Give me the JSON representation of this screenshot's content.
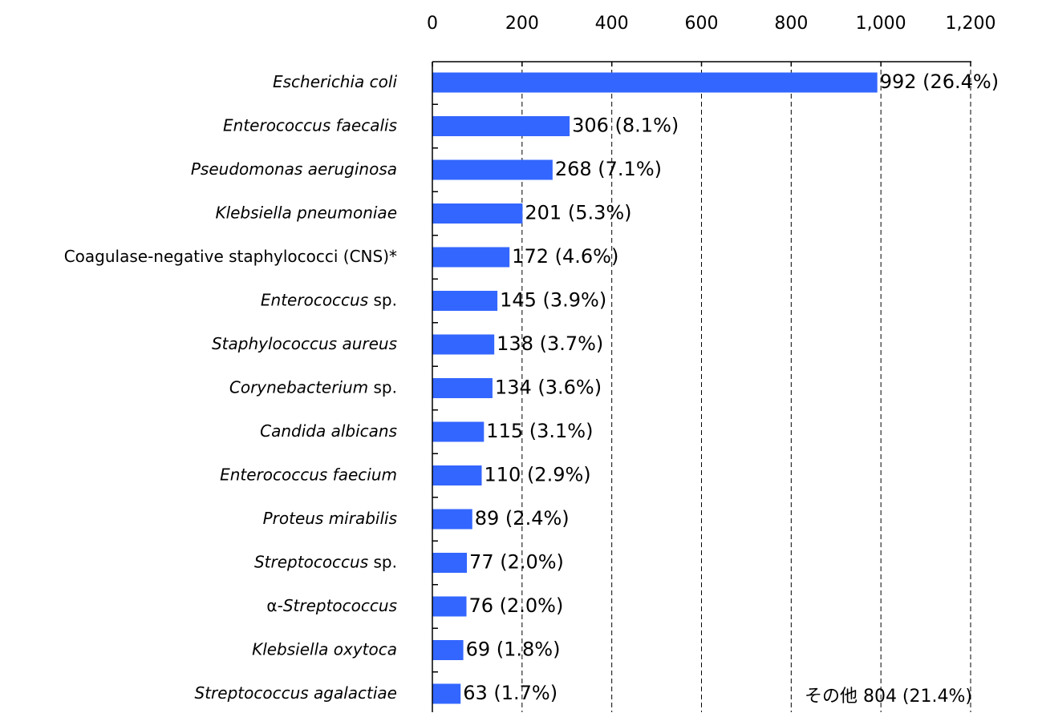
{
  "chart_data": {
    "type": "bar",
    "orientation": "horizontal",
    "x_axis_position": "top",
    "xlim": [
      0,
      1200
    ],
    "x_ticks": [
      0,
      200,
      400,
      600,
      800,
      1000,
      1200
    ],
    "x_tick_labels": [
      "0",
      "200",
      "400",
      "600",
      "800",
      "1,000",
      "1,200"
    ],
    "grid": "vertical dashed",
    "bar_color": "#3366ff",
    "categories": [
      {
        "parts": [
          {
            "text": "Escherichia coli",
            "italic": true
          }
        ]
      },
      {
        "parts": [
          {
            "text": "Enterococcus faecalis",
            "italic": true
          }
        ]
      },
      {
        "parts": [
          {
            "text": "Pseudomonas aeruginosa",
            "italic": true
          }
        ]
      },
      {
        "parts": [
          {
            "text": "Klebsiella pneumoniae",
            "italic": true
          }
        ]
      },
      {
        "parts": [
          {
            "text": "Coagulase-negative staphylococci (CNS)*",
            "italic": false
          }
        ]
      },
      {
        "parts": [
          {
            "text": "Enterococcus",
            "italic": true
          },
          {
            "text": " sp.",
            "italic": false
          }
        ]
      },
      {
        "parts": [
          {
            "text": "Staphylococcus aureus",
            "italic": true
          }
        ]
      },
      {
        "parts": [
          {
            "text": "Corynebacterium",
            "italic": true
          },
          {
            "text": " sp.",
            "italic": false
          }
        ]
      },
      {
        "parts": [
          {
            "text": "Candida albicans",
            "italic": true
          }
        ]
      },
      {
        "parts": [
          {
            "text": "Enterococcus faecium",
            "italic": true
          }
        ]
      },
      {
        "parts": [
          {
            "text": "Proteus mirabilis",
            "italic": true
          }
        ]
      },
      {
        "parts": [
          {
            "text": "Streptococcus",
            "italic": true
          },
          {
            "text": " sp.",
            "italic": false
          }
        ]
      },
      {
        "parts": [
          {
            "text": "α-",
            "italic": false
          },
          {
            "text": "Streptococcus",
            "italic": true
          }
        ]
      },
      {
        "parts": [
          {
            "text": "Klebsiella oxytoca",
            "italic": true
          }
        ]
      },
      {
        "parts": [
          {
            "text": "Streptococcus agalactiae",
            "italic": true
          }
        ]
      }
    ],
    "values": [
      992,
      306,
      268,
      201,
      172,
      145,
      138,
      134,
      115,
      110,
      89,
      77,
      76,
      69,
      63
    ],
    "data_labels": [
      "992 (26.4%)",
      "306 (8.1%)",
      "268 (7.1%)",
      "201 (5.3%)",
      "172 (4.6%)",
      "145 (3.9%)",
      "138 (3.7%)",
      "134 (3.6%)",
      "115 (3.1%)",
      "110 (2.9%)",
      "89 (2.4%)",
      "77 (2.0%)",
      "76 (2.0%)",
      "69 (1.8%)",
      "63 (1.7%)"
    ],
    "annotation": "その他 804 (21.4%)"
  }
}
